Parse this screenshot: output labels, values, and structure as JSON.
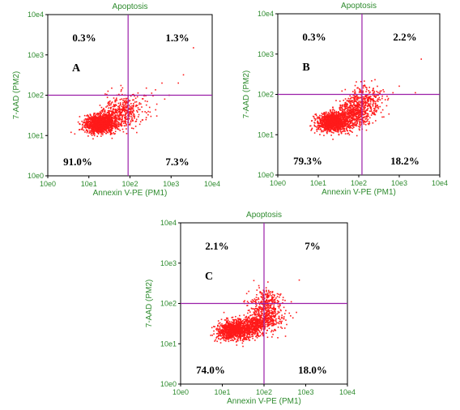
{
  "chart_data": [
    {
      "type": "scatter",
      "panel_label": "A",
      "title": "Apoptosis",
      "xlabel": "Annexin V-PE (PM1)",
      "ylabel": "7-AAD (PM2)",
      "scale": "log",
      "xlim": [
        1,
        10000
      ],
      "ylim": [
        1,
        10000
      ],
      "x_ticks": [
        "10e0",
        "10e1",
        "10e2",
        "10e3",
        "10e4"
      ],
      "y_ticks": [
        "10e0",
        "10e1",
        "10e2",
        "10e3",
        "10e4"
      ],
      "gate": {
        "x": 90,
        "y": 100
      },
      "quadrants": {
        "upper_left": "0.3%",
        "upper_right": "1.3%",
        "lower_left": "91.0%",
        "lower_right": "7.3%"
      },
      "clusters": [
        {
          "cx": 20,
          "cy": 20,
          "sx": 0.2,
          "sy": 0.12,
          "n": 1300,
          "rot": 0.1
        },
        {
          "cx": 65,
          "cy": 40,
          "sx": 0.2,
          "sy": 0.22,
          "n": 340,
          "rot": 0.5
        },
        {
          "cx": 150,
          "cy": 45,
          "sx": 0.3,
          "sy": 0.25,
          "n": 50,
          "rot": 0.3
        }
      ],
      "outliers": [
        [
          3500,
          1500
        ],
        [
          2000,
          320
        ],
        [
          1500,
          200
        ],
        [
          700,
          80
        ],
        [
          450,
          60
        ],
        [
          300,
          50
        ],
        [
          900,
          100
        ],
        [
          250,
          150
        ]
      ]
    },
    {
      "type": "scatter",
      "panel_label": "B",
      "title": "Apoptosis",
      "xlabel": "Annexin V-PE (PM1)",
      "ylabel": "7-AAD (PM2)",
      "scale": "log",
      "xlim": [
        1,
        10000
      ],
      "ylim": [
        1,
        10000
      ],
      "x_ticks": [
        "10e0",
        "10e1",
        "10e2",
        "10e3",
        "10e4"
      ],
      "y_ticks": [
        "10e0",
        "10e1",
        "10e2",
        "10e3",
        "10e4"
      ],
      "gate": {
        "x": 120,
        "y": 100
      },
      "quadrants": {
        "upper_left": "0.3%",
        "upper_right": "2.2%",
        "lower_left": "79.3%",
        "lower_right": "18.2%"
      },
      "clusters": [
        {
          "cx": 22,
          "cy": 20,
          "sx": 0.2,
          "sy": 0.12,
          "n": 1050,
          "rot": 0.15
        },
        {
          "cx": 70,
          "cy": 32,
          "sx": 0.22,
          "sy": 0.18,
          "n": 520,
          "rot": 0.7
        },
        {
          "cx": 140,
          "cy": 55,
          "sx": 0.2,
          "sy": 0.22,
          "n": 260,
          "rot": 0.7
        },
        {
          "cx": 200,
          "cy": 110,
          "sx": 0.15,
          "sy": 0.18,
          "n": 60,
          "rot": 0.5
        }
      ],
      "outliers": [
        [
          3500,
          750
        ],
        [
          700,
          110
        ],
        [
          1000,
          160
        ],
        [
          2500,
          110
        ],
        [
          500,
          90
        ],
        [
          400,
          130
        ],
        [
          8,
          20
        ],
        [
          9,
          30
        ]
      ]
    },
    {
      "type": "scatter",
      "panel_label": "C",
      "title": "Apoptosis",
      "xlabel": "Annexin V-PE (PM1)",
      "ylabel": "7-AAD (PM2)",
      "scale": "log",
      "xlim": [
        1,
        10000
      ],
      "ylim": [
        1,
        10000
      ],
      "x_ticks": [
        "10e0",
        "10e1",
        "10e2",
        "10e3",
        "10e4"
      ],
      "y_ticks": [
        "10e0",
        "10e1",
        "10e2",
        "10e3",
        "10e4"
      ],
      "gate": {
        "x": 100,
        "y": 100
      },
      "quadrants": {
        "upper_left": "2.1%",
        "upper_right": "7%",
        "lower_left": "74.0%",
        "lower_right": "18.0%"
      },
      "clusters": [
        {
          "cx": 20,
          "cy": 22,
          "sx": 0.2,
          "sy": 0.12,
          "n": 1000,
          "rot": 0.1
        },
        {
          "cx": 65,
          "cy": 30,
          "sx": 0.22,
          "sy": 0.15,
          "n": 500,
          "rot": 0.5
        },
        {
          "cx": 110,
          "cy": 60,
          "sx": 0.15,
          "sy": 0.25,
          "n": 320,
          "rot": 0.9
        },
        {
          "cx": 130,
          "cy": 140,
          "sx": 0.12,
          "sy": 0.18,
          "n": 120,
          "rot": 0.8
        }
      ],
      "outliers": [
        [
          700,
          380
        ],
        [
          450,
          110
        ],
        [
          300,
          80
        ],
        [
          600,
          60
        ],
        [
          8,
          15
        ],
        [
          12,
          12
        ],
        [
          350,
          30
        ]
      ]
    }
  ]
}
